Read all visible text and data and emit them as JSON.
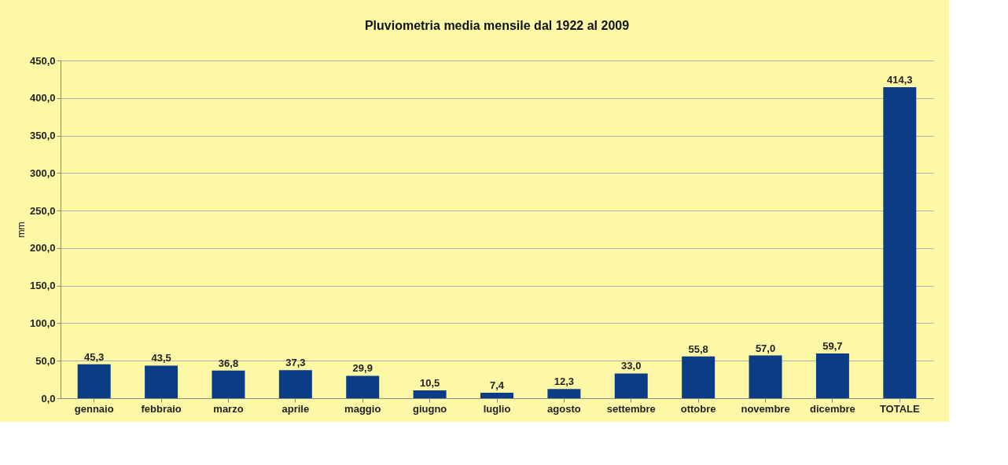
{
  "chart_data": {
    "type": "bar",
    "title": "Pluviometria media mensile dal 1922 al 2009",
    "ylabel": "mm",
    "categories": [
      "gennaio",
      "febbraio",
      "marzo",
      "aprile",
      "maggio",
      "giugno",
      "luglio",
      "agosto",
      "settembre",
      "ottobre",
      "novembre",
      "dicembre",
      "TOTALE"
    ],
    "values": [
      45.3,
      43.5,
      36.8,
      37.3,
      29.9,
      10.5,
      7.4,
      12.3,
      33.0,
      55.8,
      57.0,
      59.7,
      414.3
    ],
    "value_labels": [
      "45,3",
      "43,5",
      "36,8",
      "37,3",
      "29,9",
      "10,5",
      "7,4",
      "12,3",
      "33,0",
      "55,8",
      "57,0",
      "59,7",
      "414,3"
    ],
    "color": "#0b3d87",
    "ylim": [
      0,
      450
    ],
    "yticks": [
      {
        "value": 0,
        "label": "0,0"
      },
      {
        "value": 50,
        "label": "50,0"
      },
      {
        "value": 100,
        "label": "100,0"
      },
      {
        "value": 150,
        "label": "150,0"
      },
      {
        "value": 200,
        "label": "200,0"
      },
      {
        "value": 250,
        "label": "250,0"
      },
      {
        "value": 300,
        "label": "300,0"
      },
      {
        "value": 350,
        "label": "350,0"
      },
      {
        "value": 400,
        "label": "400,0"
      },
      {
        "value": 450,
        "label": "450,0"
      }
    ],
    "grid": "y"
  }
}
